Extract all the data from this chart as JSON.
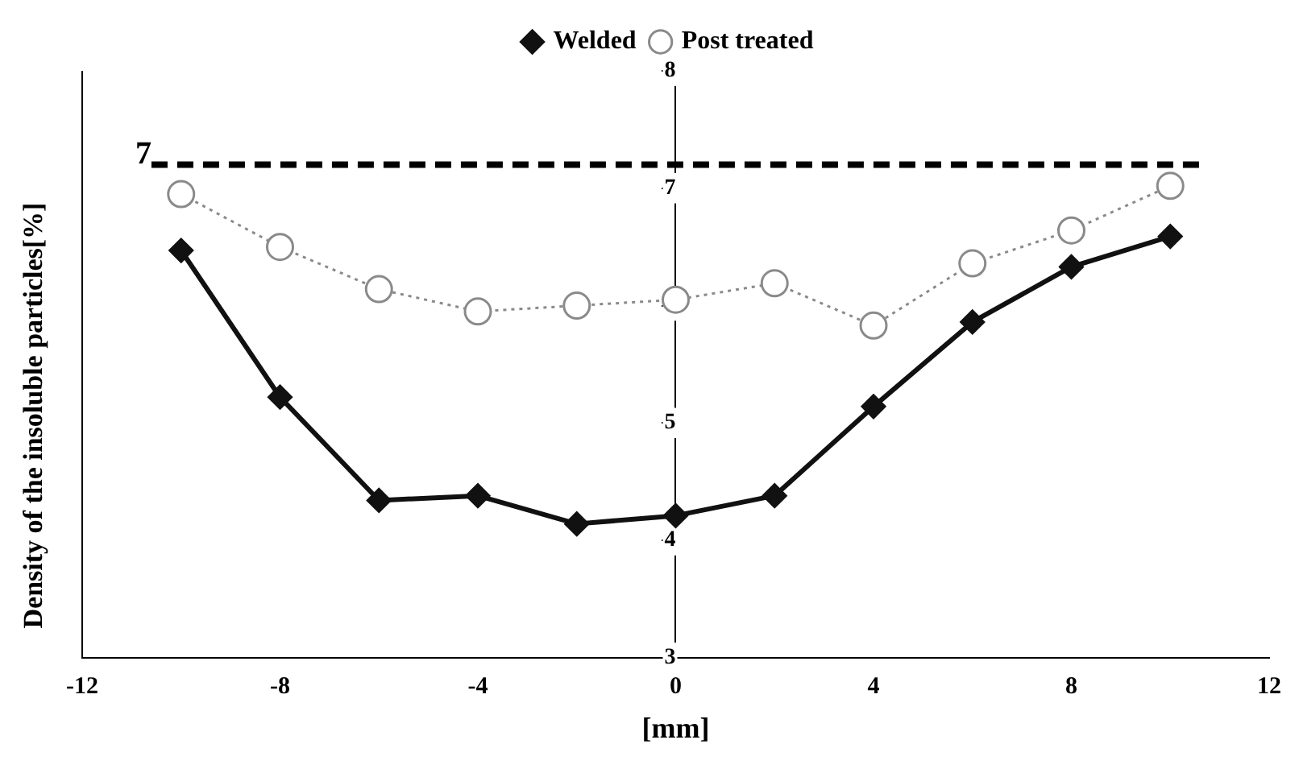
{
  "chart_data": {
    "type": "line",
    "xlabel": "[mm]",
    "ylabel": "Density of the insoluble particles[%]",
    "x": [
      -10,
      -8,
      -6,
      -4,
      -2,
      0,
      2,
      4,
      6,
      8,
      10
    ],
    "series": [
      {
        "name": "Welded",
        "color": "#111111",
        "marker": "diamond",
        "line_style": "solid",
        "values": [
          6.47,
          5.22,
          4.34,
          4.38,
          4.14,
          4.21,
          4.38,
          5.14,
          5.86,
          6.33,
          6.59
        ]
      },
      {
        "name": "Post treated",
        "color": "#8a8a8a",
        "marker": "circle",
        "line_style": "dotted",
        "values": [
          6.95,
          6.5,
          6.14,
          5.95,
          6.0,
          6.05,
          6.19,
          5.83,
          6.36,
          6.64,
          7.02
        ]
      }
    ],
    "xlim": [
      -12,
      12
    ],
    "xticks": [
      -12,
      -8,
      -4,
      0,
      4,
      8,
      12
    ],
    "ylim": [
      3,
      8
    ],
    "yticks": [
      3,
      4,
      5,
      6,
      7,
      8
    ],
    "ref_lines": [
      {
        "axis": "y",
        "value": 7.2,
        "label": "7",
        "color": "#000000",
        "line_style": "dashed"
      }
    ],
    "legend": "top",
    "grid": false
  }
}
